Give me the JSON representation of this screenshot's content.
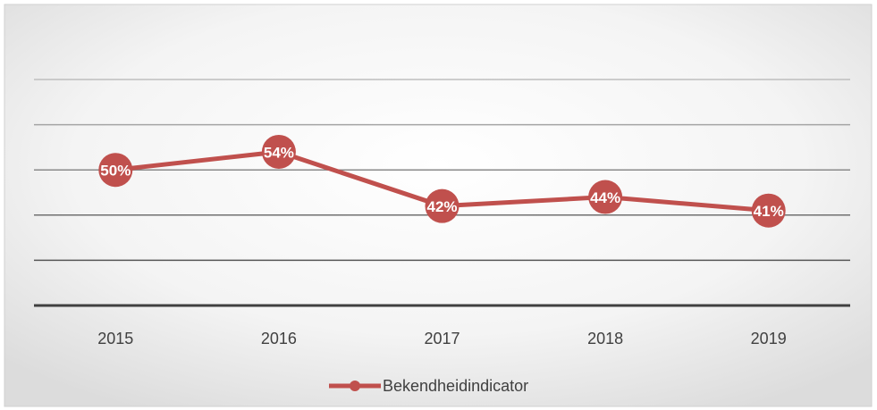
{
  "chart_data": {
    "type": "line",
    "categories": [
      "2015",
      "2016",
      "2017",
      "2018",
      "2019"
    ],
    "series": [
      {
        "name": "Bekendheidindicator",
        "color": "#c0504d",
        "values": [
          50,
          54,
          42,
          44,
          41
        ],
        "value_labels": [
          "50%",
          "54%",
          "42%",
          "44%",
          "41%"
        ]
      }
    ],
    "ylim": [
      20,
      70
    ],
    "yticks": [
      20,
      30,
      40,
      50,
      60,
      70
    ],
    "grid": true,
    "legend": "bottom"
  }
}
